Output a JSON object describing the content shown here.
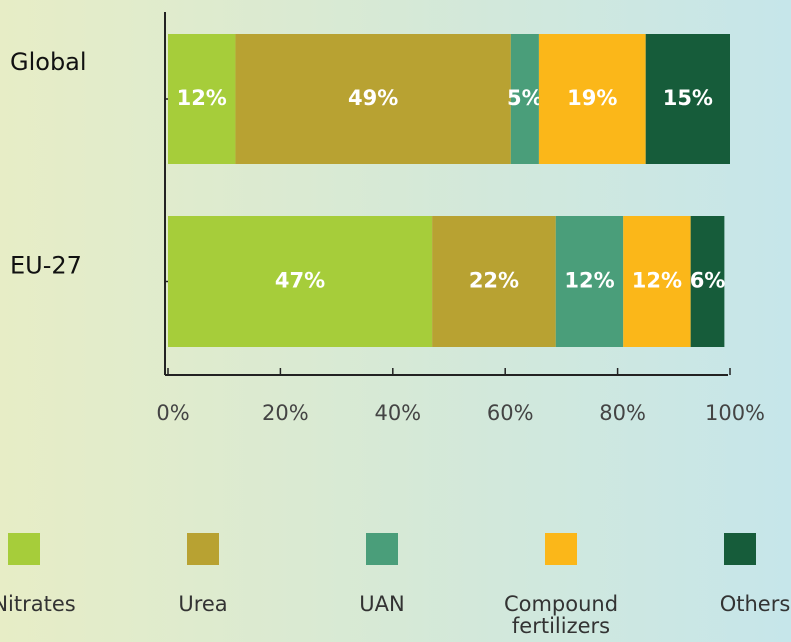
{
  "chart_data": {
    "type": "bar",
    "orientation": "horizontal",
    "stacked": true,
    "categories": [
      "Global",
      "EU-27"
    ],
    "series": [
      {
        "name": "Nitrates",
        "color": "#a6cd3a",
        "values": [
          12,
          47
        ],
        "value_labels": [
          "12%",
          "47%"
        ]
      },
      {
        "name": "Urea",
        "color": "#b8a232",
        "values": [
          49,
          22
        ],
        "value_labels": [
          "49%",
          "22%"
        ]
      },
      {
        "name": "UAN",
        "color": "#4a9e7a",
        "values": [
          5,
          12
        ],
        "value_labels": [
          "5%",
          "12%"
        ]
      },
      {
        "name": "Compound fertilizers",
        "color": "#fbb719",
        "values": [
          19,
          12
        ],
        "value_labels": [
          "19%",
          "12%"
        ]
      },
      {
        "name": "Others",
        "color": "#165c3a",
        "values": [
          15,
          6
        ],
        "value_labels": [
          "15%",
          "6%"
        ]
      }
    ],
    "xlim": [
      0,
      100
    ],
    "xticks": [
      {
        "value": 0,
        "label": "0%"
      },
      {
        "value": 20,
        "label": "20%"
      },
      {
        "value": 40,
        "label": "40%"
      },
      {
        "value": 60,
        "label": "60%"
      },
      {
        "value": 80,
        "label": "80%"
      },
      {
        "value": 100,
        "label": "100%"
      }
    ]
  }
}
